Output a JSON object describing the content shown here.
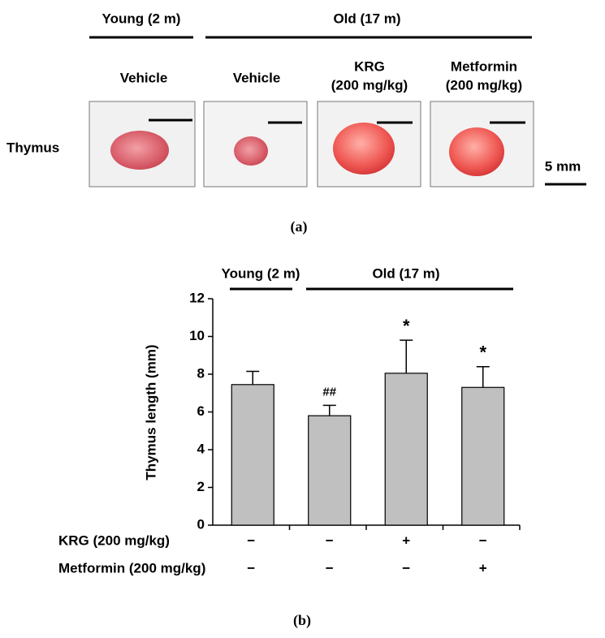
{
  "panel_a": {
    "label": "(a)",
    "groups": [
      "Young (2 m)",
      "Old (17 m)"
    ],
    "columns": [
      [
        "Vehicle"
      ],
      [
        "Vehicle"
      ],
      [
        "KRG",
        "(200 mg/kg)"
      ],
      [
        "Metformin",
        "(200 mg/kg)"
      ]
    ],
    "row_label": "Thymus",
    "scale_bar": "5 mm"
  },
  "chart_data": {
    "type": "bar",
    "label": "(b)",
    "y_label": "Thymus length (mm)",
    "groups": [
      "Young (2 m)",
      "Old (17 m)"
    ],
    "categories": [
      null,
      null,
      null,
      null
    ],
    "values": [
      7.45,
      5.8,
      8.05,
      7.3
    ],
    "errors": [
      0.7,
      0.55,
      1.75,
      1.1
    ],
    "annotations": [
      {
        "index": 1,
        "text": "##"
      },
      {
        "index": 2,
        "text": "*"
      },
      {
        "index": 3,
        "text": "*"
      }
    ],
    "treatments": [
      {
        "label": "KRG (200 mg/kg)",
        "signs": [
          "−",
          "−",
          "+",
          "−"
        ]
      },
      {
        "label": "Metformin (200 mg/kg)",
        "signs": [
          "−",
          "−",
          "−",
          "+"
        ]
      }
    ],
    "color": "#c0c0c0",
    "ylim": [
      0,
      12
    ],
    "yticks": [
      0,
      2,
      4,
      6,
      8,
      10,
      12
    ]
  }
}
